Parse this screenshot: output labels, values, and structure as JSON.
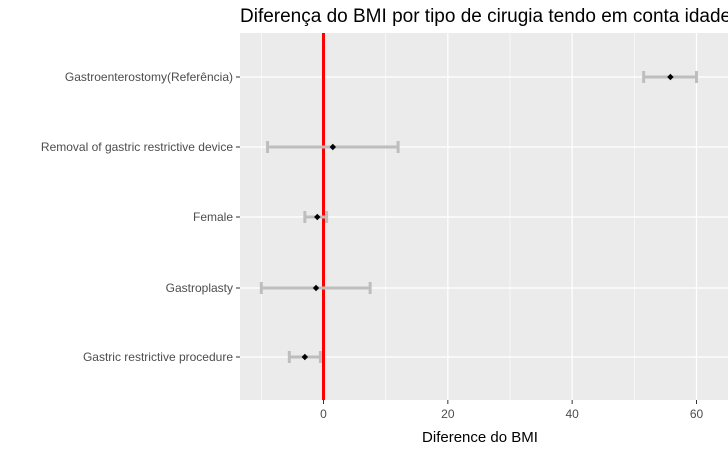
{
  "chart_data": {
    "type": "errorbar-dot",
    "title": "Diferença do BMI por tipo de cirugia tendo em conta idade",
    "xlabel": "Diference do BMI",
    "ylabel": "",
    "xlim": [
      -13.5,
      63.5
    ],
    "xticks": [
      0,
      20,
      40,
      60
    ],
    "xtick_labels": [
      "0",
      "20",
      "40",
      "60"
    ],
    "grid": true,
    "reference_line": {
      "x": 0,
      "color": "#ff0000"
    },
    "categories": [
      "Gastroenterostomy(Referência)",
      "Removal of gastric restrictive device",
      "Female",
      "Gastroplasty",
      "Gastric restrictive procedure"
    ],
    "estimates": [
      55.8,
      1.5,
      -1.0,
      -1.2,
      -3.0
    ],
    "lower": [
      51.5,
      -9.0,
      -3.0,
      -10.0,
      -5.5
    ],
    "upper": [
      60.0,
      12.0,
      0.5,
      7.5,
      -0.5
    ],
    "colors": {
      "panel": "#ebebeb",
      "grid": "#ffffff",
      "errorbar": "#bebebe",
      "point": "#000000",
      "refline": "#ff0000"
    }
  }
}
